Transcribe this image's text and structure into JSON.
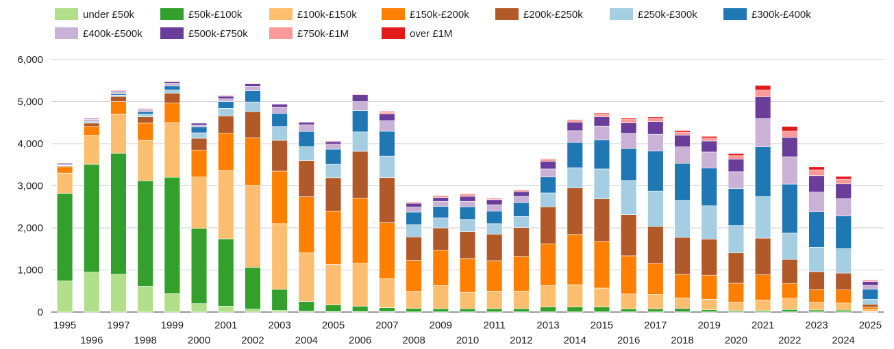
{
  "chart_data": {
    "type": "bar",
    "stacked": true,
    "title": "",
    "xlabel": "",
    "ylabel": "",
    "ylim": [
      0,
      6000
    ],
    "yticks": [
      0,
      1000,
      2000,
      3000,
      4000,
      5000,
      6000
    ],
    "ytick_labels": [
      "0",
      "1,000",
      "2,000",
      "3,000",
      "4,000",
      "5,000",
      "6,000"
    ],
    "grid": true,
    "legend_position": "top",
    "categories": [
      "1995",
      "1996",
      "1997",
      "1998",
      "1999",
      "2000",
      "2001",
      "2002",
      "2003",
      "2004",
      "2005",
      "2006",
      "2007",
      "2008",
      "2009",
      "2010",
      "2011",
      "2012",
      "2013",
      "2014",
      "2015",
      "2016",
      "2017",
      "2018",
      "2019",
      "2020",
      "2021",
      "2022",
      "2023",
      "2024",
      "2025"
    ],
    "series": [
      {
        "name": "under £50k",
        "color": "#b2df8a",
        "values": [
          740,
          950,
          900,
          610,
          440,
          200,
          140,
          70,
          40,
          20,
          10,
          10,
          10,
          5,
          5,
          5,
          5,
          5,
          5,
          5,
          5,
          5,
          5,
          5,
          5,
          5,
          5,
          5,
          5,
          5,
          2
        ]
      },
      {
        "name": "£50k-£100k",
        "color": "#33a02c",
        "values": [
          2080,
          2560,
          2870,
          2510,
          2760,
          1790,
          1600,
          990,
          500,
          230,
          160,
          130,
          95,
          80,
          75,
          75,
          75,
          75,
          115,
          115,
          115,
          70,
          70,
          80,
          50,
          30,
          30,
          55,
          45,
          40,
          8
        ]
      },
      {
        "name": "£100k-£150k",
        "color": "#fdbf6f",
        "values": [
          480,
          690,
          930,
          960,
          1300,
          1220,
          1620,
          1950,
          1560,
          1160,
          960,
          1020,
          690,
          410,
          550,
          390,
          420,
          420,
          510,
          530,
          450,
          360,
          340,
          250,
          250,
          200,
          250,
          270,
          180,
          170,
          45
        ]
      },
      {
        "name": "£150k-£200k",
        "color": "#ff7f00",
        "values": [
          150,
          210,
          300,
          410,
          470,
          640,
          890,
          1130,
          1250,
          1330,
          1270,
          1550,
          1330,
          730,
          840,
          800,
          720,
          820,
          990,
          1190,
          1110,
          900,
          740,
          560,
          570,
          450,
          600,
          350,
          300,
          310,
          60
        ]
      },
      {
        "name": "£200k-£250k",
        "color": "#b15928",
        "values": [
          20,
          80,
          120,
          150,
          230,
          280,
          410,
          620,
          730,
          860,
          790,
          1110,
          1070,
          560,
          530,
          640,
          630,
          690,
          880,
          1110,
          1010,
          980,
          880,
          880,
          860,
          720,
          870,
          570,
          430,
          400,
          70
        ]
      },
      {
        "name": "£250k-£300k",
        "color": "#a6cee3",
        "values": [
          10,
          20,
          30,
          60,
          80,
          130,
          180,
          230,
          330,
          330,
          320,
          460,
          510,
          290,
          240,
          290,
          250,
          260,
          330,
          480,
          710,
          810,
          840,
          880,
          790,
          650,
          990,
          630,
          580,
          580,
          120
        ]
      },
      {
        "name": "£300k-£400k",
        "color": "#1f78b4",
        "values": [
          10,
          20,
          40,
          60,
          90,
          140,
          160,
          270,
          310,
          360,
          360,
          510,
          590,
          300,
          270,
          300,
          300,
          330,
          380,
          600,
          690,
          760,
          950,
          880,
          900,
          880,
          1180,
          1160,
          840,
          780,
          240
        ]
      },
      {
        "name": "£400k-£500k",
        "color": "#cab2d6",
        "values": [
          40,
          50,
          40,
          40,
          70,
          40,
          70,
          100,
          150,
          160,
          120,
          210,
          250,
          120,
          120,
          130,
          150,
          150,
          190,
          280,
          330,
          360,
          400,
          390,
          380,
          400,
          670,
          650,
          470,
          410,
          90
        ]
      },
      {
        "name": "£500k-£750k",
        "color": "#6a3d9a",
        "values": [
          20,
          20,
          20,
          20,
          30,
          50,
          60,
          60,
          70,
          60,
          60,
          160,
          160,
          90,
          90,
          120,
          120,
          110,
          180,
          200,
          220,
          250,
          300,
          280,
          260,
          300,
          520,
          460,
          390,
          350,
          90
        ]
      },
      {
        "name": "£750k-£1M",
        "color": "#fb9a99",
        "values": [
          10,
          10,
          20,
          20,
          20,
          10,
          20,
          20,
          10,
          10,
          20,
          20,
          40,
          30,
          50,
          60,
          40,
          40,
          40,
          40,
          60,
          80,
          70,
          70,
          70,
          80,
          160,
          150,
          140,
          110,
          30
        ]
      },
      {
        "name": "over £1M",
        "color": "#e31a1c",
        "values": [
          0,
          0,
          5,
          5,
          0,
          5,
          5,
          5,
          5,
          5,
          5,
          10,
          20,
          10,
          10,
          10,
          10,
          10,
          20,
          20,
          30,
          30,
          40,
          40,
          40,
          50,
          110,
          110,
          70,
          70,
          15
        ]
      }
    ]
  }
}
